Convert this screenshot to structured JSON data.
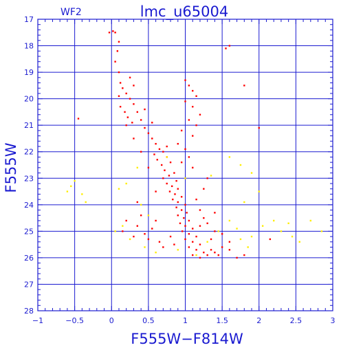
{
  "chart_data": {
    "type": "scatter",
    "title": "lmc_u65004",
    "corner_label": "WF2",
    "xlabel": "F555W−F814W",
    "ylabel": "F555W",
    "xlim": [
      -1,
      3
    ],
    "ylim": [
      28,
      17
    ],
    "y_inverted": true,
    "grid": true,
    "x_ticks": [
      -1,
      -0.5,
      0,
      0.5,
      1,
      1.5,
      2,
      2.5,
      3
    ],
    "x_tick_labels": [
      "−1",
      "−0.5",
      "0",
      "0.5",
      "1",
      "1.5",
      "2",
      "2.5",
      "3"
    ],
    "y_ticks": [
      17,
      18,
      19,
      20,
      21,
      22,
      23,
      24,
      25,
      26,
      27,
      28
    ],
    "y_tick_labels": [
      "17",
      "18",
      "19",
      "20",
      "21",
      "22",
      "23",
      "24",
      "25",
      "26",
      "27",
      "28"
    ],
    "series": [
      {
        "color": "#ff0000",
        "points": [
          [
            0.02,
            17.45
          ],
          [
            0.05,
            17.5
          ],
          [
            -0.03,
            17.5
          ],
          [
            0.1,
            17.85
          ],
          [
            0.08,
            18.2
          ],
          [
            0.05,
            18.6
          ],
          [
            0.1,
            19.0
          ],
          [
            0.12,
            19.4
          ],
          [
            0.15,
            19.6
          ],
          [
            0.2,
            19.8
          ],
          [
            0.1,
            19.9
          ],
          [
            0.25,
            20.0
          ],
          [
            0.3,
            20.2
          ],
          [
            0.12,
            20.3
          ],
          [
            0.18,
            20.5
          ],
          [
            0.22,
            20.7
          ],
          [
            0.28,
            20.9
          ],
          [
            0.35,
            20.5
          ],
          [
            0.4,
            20.8
          ],
          [
            0.45,
            21.1
          ],
          [
            0.2,
            21.0
          ],
          [
            0.5,
            21.3
          ],
          [
            0.55,
            21.5
          ],
          [
            0.6,
            21.7
          ],
          [
            0.65,
            21.9
          ],
          [
            0.7,
            22.0
          ],
          [
            0.58,
            22.1
          ],
          [
            0.75,
            22.2
          ],
          [
            0.62,
            22.3
          ],
          [
            0.8,
            22.4
          ],
          [
            0.68,
            22.5
          ],
          [
            0.72,
            22.7
          ],
          [
            0.85,
            22.8
          ],
          [
            0.78,
            22.9
          ],
          [
            0.7,
            23.0
          ],
          [
            0.88,
            23.1
          ],
          [
            0.75,
            23.2
          ],
          [
            0.82,
            23.3
          ],
          [
            0.9,
            23.4
          ],
          [
            0.79,
            23.5
          ],
          [
            0.86,
            23.6
          ],
          [
            0.95,
            23.7
          ],
          [
            0.83,
            23.8
          ],
          [
            0.9,
            23.9
          ],
          [
            1.0,
            24.0
          ],
          [
            0.88,
            24.1
          ],
          [
            0.95,
            24.2
          ],
          [
            1.02,
            24.3
          ],
          [
            0.9,
            24.4
          ],
          [
            0.98,
            24.5
          ],
          [
            1.05,
            24.6
          ],
          [
            0.93,
            24.7
          ],
          [
            1.0,
            24.8
          ],
          [
            1.1,
            24.9
          ],
          [
            0.96,
            25.0
          ],
          [
            1.05,
            25.1
          ],
          [
            1.15,
            25.2
          ],
          [
            1.0,
            25.3
          ],
          [
            1.1,
            25.4
          ],
          [
            1.2,
            25.5
          ],
          [
            1.05,
            25.6
          ],
          [
            1.15,
            25.7
          ],
          [
            1.25,
            25.8
          ],
          [
            1.1,
            25.9
          ],
          [
            1.2,
            26.0
          ],
          [
            1.3,
            25.9
          ],
          [
            1.35,
            25.7
          ],
          [
            1.4,
            25.8
          ],
          [
            1.5,
            25.6
          ],
          [
            1.45,
            25.9
          ],
          [
            1.6,
            25.7
          ],
          [
            1.7,
            26.0
          ],
          [
            1.8,
            25.9
          ],
          [
            0.6,
            24.6
          ],
          [
            0.55,
            24.9
          ],
          [
            0.45,
            25.1
          ],
          [
            0.4,
            24.4
          ],
          [
            0.35,
            24.8
          ],
          [
            0.3,
            25.2
          ],
          [
            0.5,
            25.3
          ],
          [
            0.65,
            25.4
          ],
          [
            0.7,
            25.6
          ],
          [
            0.8,
            25.2
          ],
          [
            0.85,
            25.5
          ],
          [
            1.3,
            24.7
          ],
          [
            1.4,
            25.0
          ],
          [
            1.2,
            24.8
          ],
          [
            1.35,
            25.3
          ],
          [
            1.5,
            25.1
          ],
          [
            1.25,
            24.5
          ],
          [
            1.0,
            19.3
          ],
          [
            1.05,
            19.5
          ],
          [
            1.1,
            19.7
          ],
          [
            1.15,
            19.9
          ],
          [
            1.0,
            20.1
          ],
          [
            1.1,
            20.3
          ],
          [
            1.2,
            20.6
          ],
          [
            1.05,
            20.8
          ],
          [
            1.15,
            21.0
          ],
          [
            0.95,
            21.2
          ],
          [
            1.1,
            21.4
          ],
          [
            0.9,
            21.7
          ],
          [
            1.0,
            21.9
          ],
          [
            1.05,
            22.2
          ],
          [
            0.95,
            22.4
          ],
          [
            1.6,
            18.0
          ],
          [
            1.55,
            18.1
          ],
          [
            1.8,
            19.5
          ],
          [
            2.0,
            21.1
          ],
          [
            0.3,
            21.5
          ],
          [
            0.4,
            22.0
          ],
          [
            0.5,
            22.6
          ],
          [
            0.6,
            23.5
          ],
          [
            1.3,
            23.0
          ],
          [
            1.15,
            23.8
          ],
          [
            1.2,
            24.2
          ],
          [
            1.4,
            24.3
          ],
          [
            1.6,
            25.4
          ],
          [
            2.15,
            25.3
          ],
          [
            -0.45,
            20.75
          ],
          [
            0.25,
            19.2
          ],
          [
            0.3,
            19.5
          ],
          [
            0.45,
            20.4
          ],
          [
            0.55,
            20.9
          ],
          [
            0.75,
            21.8
          ],
          [
            1.1,
            22.6
          ],
          [
            1.25,
            23.4
          ],
          [
            0.35,
            23.9
          ],
          [
            0.2,
            24.6
          ],
          [
            0.15,
            25.0
          ]
        ]
      },
      {
        "color": "#ffee00",
        "points": [
          [
            -0.55,
            23.3
          ],
          [
            -0.5,
            23.1
          ],
          [
            -0.6,
            23.5
          ],
          [
            -0.4,
            23.6
          ],
          [
            -0.35,
            23.9
          ],
          [
            0.1,
            23.4
          ],
          [
            0.2,
            23.2
          ],
          [
            0.35,
            22.6
          ],
          [
            0.4,
            24.0
          ],
          [
            0.5,
            24.4
          ],
          [
            0.15,
            24.8
          ],
          [
            0.05,
            25.0
          ],
          [
            0.25,
            25.3
          ],
          [
            0.45,
            25.6
          ],
          [
            0.6,
            25.8
          ],
          [
            0.9,
            25.7
          ],
          [
            1.3,
            25.4
          ],
          [
            1.45,
            25.0
          ],
          [
            1.6,
            24.6
          ],
          [
            1.7,
            24.9
          ],
          [
            1.75,
            25.3
          ],
          [
            1.85,
            25.6
          ],
          [
            1.9,
            25.2
          ],
          [
            2.05,
            24.8
          ],
          [
            2.2,
            24.6
          ],
          [
            2.3,
            25.0
          ],
          [
            2.4,
            24.7
          ],
          [
            2.45,
            25.2
          ],
          [
            2.55,
            25.4
          ],
          [
            2.7,
            24.6
          ],
          [
            2.85,
            25.0
          ],
          [
            1.8,
            23.9
          ],
          [
            1.9,
            22.8
          ],
          [
            1.75,
            22.5
          ],
          [
            1.6,
            22.2
          ],
          [
            1.35,
            22.9
          ],
          [
            2.0,
            23.5
          ],
          [
            0.75,
            22.2
          ],
          [
            1.0,
            23.0
          ],
          [
            1.15,
            25.9
          ]
        ]
      }
    ]
  }
}
